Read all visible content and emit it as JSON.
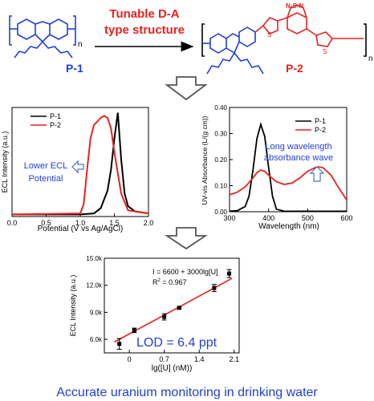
{
  "top": {
    "p1_label": "P-1",
    "p2_label": "P-2",
    "subscript_n": "n",
    "arrow_text_line1": "Tunable D-A",
    "arrow_text_line2": "type structure",
    "btd_atoms": "N-S-N"
  },
  "colors": {
    "blue": "#1f3fd6",
    "red": "#e8221e",
    "black": "#000000",
    "arrow_gray": "#555555"
  },
  "footer": {
    "caption": "Accurate uranium monitoring in drinking water"
  },
  "chart_data": [
    {
      "type": "line",
      "xlabel": "Potential (V vs Ag/AgCl)",
      "ylabel": "ECL Intensity (a.u.)",
      "xlim": [
        0.0,
        2.0
      ],
      "xticks": [
        "0.0",
        "0.5",
        "1.0",
        "1.5",
        "2.0"
      ],
      "legend_placement": "top-left",
      "annotation": "Lower ECL Potential",
      "annotation_line1": "Lower ECL",
      "annotation_line2": "Potential",
      "series": [
        {
          "name": "P-1",
          "color": "#000000",
          "x": [
            0.0,
            1.0,
            1.2,
            1.3,
            1.4,
            1.45,
            1.5,
            1.55,
            1.6,
            1.65,
            1.7,
            1.8,
            2.0
          ],
          "y": [
            0.02,
            0.02,
            0.03,
            0.08,
            0.25,
            0.45,
            0.75,
            1.0,
            0.55,
            0.22,
            0.1,
            0.05,
            0.03
          ]
        },
        {
          "name": "P-2",
          "color": "#e8221e",
          "x": [
            0.0,
            1.0,
            1.05,
            1.1,
            1.15,
            1.2,
            1.3,
            1.35,
            1.4,
            1.45,
            1.5,
            1.6,
            1.7,
            2.0
          ],
          "y": [
            0.02,
            0.03,
            0.12,
            0.45,
            0.75,
            0.88,
            0.95,
            0.97,
            0.95,
            0.85,
            0.62,
            0.22,
            0.06,
            0.03
          ]
        }
      ]
    },
    {
      "type": "line",
      "xlabel": "Wavelength (nm)",
      "ylabel": "UV-vis Absorbance (L/(g cm))",
      "xlim": [
        300,
        600
      ],
      "ylim": [
        0.0,
        0.4
      ],
      "xticks": [
        "300",
        "400",
        "500",
        "600"
      ],
      "yticks": [
        "0.00",
        "0.10",
        "0.20",
        "0.30",
        "0.40"
      ],
      "legend_placement": "top-right",
      "annotation": "Long wavelength absorbance wave",
      "annotation_line1": "Long wavelength",
      "annotation_line2": "absorbance wave",
      "series": [
        {
          "name": "P-1",
          "color": "#000000",
          "x": [
            300,
            320,
            340,
            350,
            360,
            370,
            380,
            390,
            400,
            410,
            420,
            440,
            600
          ],
          "y": [
            0.002,
            0.004,
            0.02,
            0.06,
            0.16,
            0.28,
            0.335,
            0.29,
            0.17,
            0.06,
            0.01,
            0.002,
            0.002
          ]
        },
        {
          "name": "P-2",
          "color": "#e8221e",
          "x": [
            300,
            320,
            340,
            360,
            370,
            380,
            390,
            400,
            420,
            440,
            460,
            480,
            500,
            520,
            530,
            540,
            560,
            580,
            600
          ],
          "y": [
            0.065,
            0.075,
            0.095,
            0.13,
            0.15,
            0.16,
            0.155,
            0.14,
            0.115,
            0.105,
            0.11,
            0.13,
            0.155,
            0.17,
            0.172,
            0.168,
            0.14,
            0.09,
            0.045
          ]
        }
      ]
    },
    {
      "type": "scatter",
      "xlabel": "lg([U] (nM))",
      "ylabel": "ECL Intensity (a.u.)",
      "xlim": [
        -0.5,
        2.2
      ],
      "ylim": [
        4500,
        15000
      ],
      "xticks": [
        "0",
        "0.7",
        "1.4",
        "2.1"
      ],
      "yticks": [
        "6.0k",
        "9.0k",
        "12.0k",
        "15.0k"
      ],
      "equation": "I = 6600 + 3000lg[U]",
      "r_squared": "R",
      "r_squared_exp": "2",
      "r_squared_value": " = 0.967",
      "lod": "LOD = 6.4 ppt",
      "fit": {
        "intercept": 6600,
        "slope": 3000,
        "x_range": [
          -0.3,
          2.05
        ],
        "color": "#e8221e"
      },
      "points": [
        {
          "x": -0.2,
          "y": 5500,
          "err": 600
        },
        {
          "x": 0.1,
          "y": 7000,
          "err": 250
        },
        {
          "x": 0.7,
          "y": 8500,
          "err": 350
        },
        {
          "x": 1.0,
          "y": 9500,
          "err": 150
        },
        {
          "x": 1.7,
          "y": 11700,
          "err": 400
        },
        {
          "x": 2.0,
          "y": 13300,
          "err": 450
        }
      ]
    }
  ]
}
